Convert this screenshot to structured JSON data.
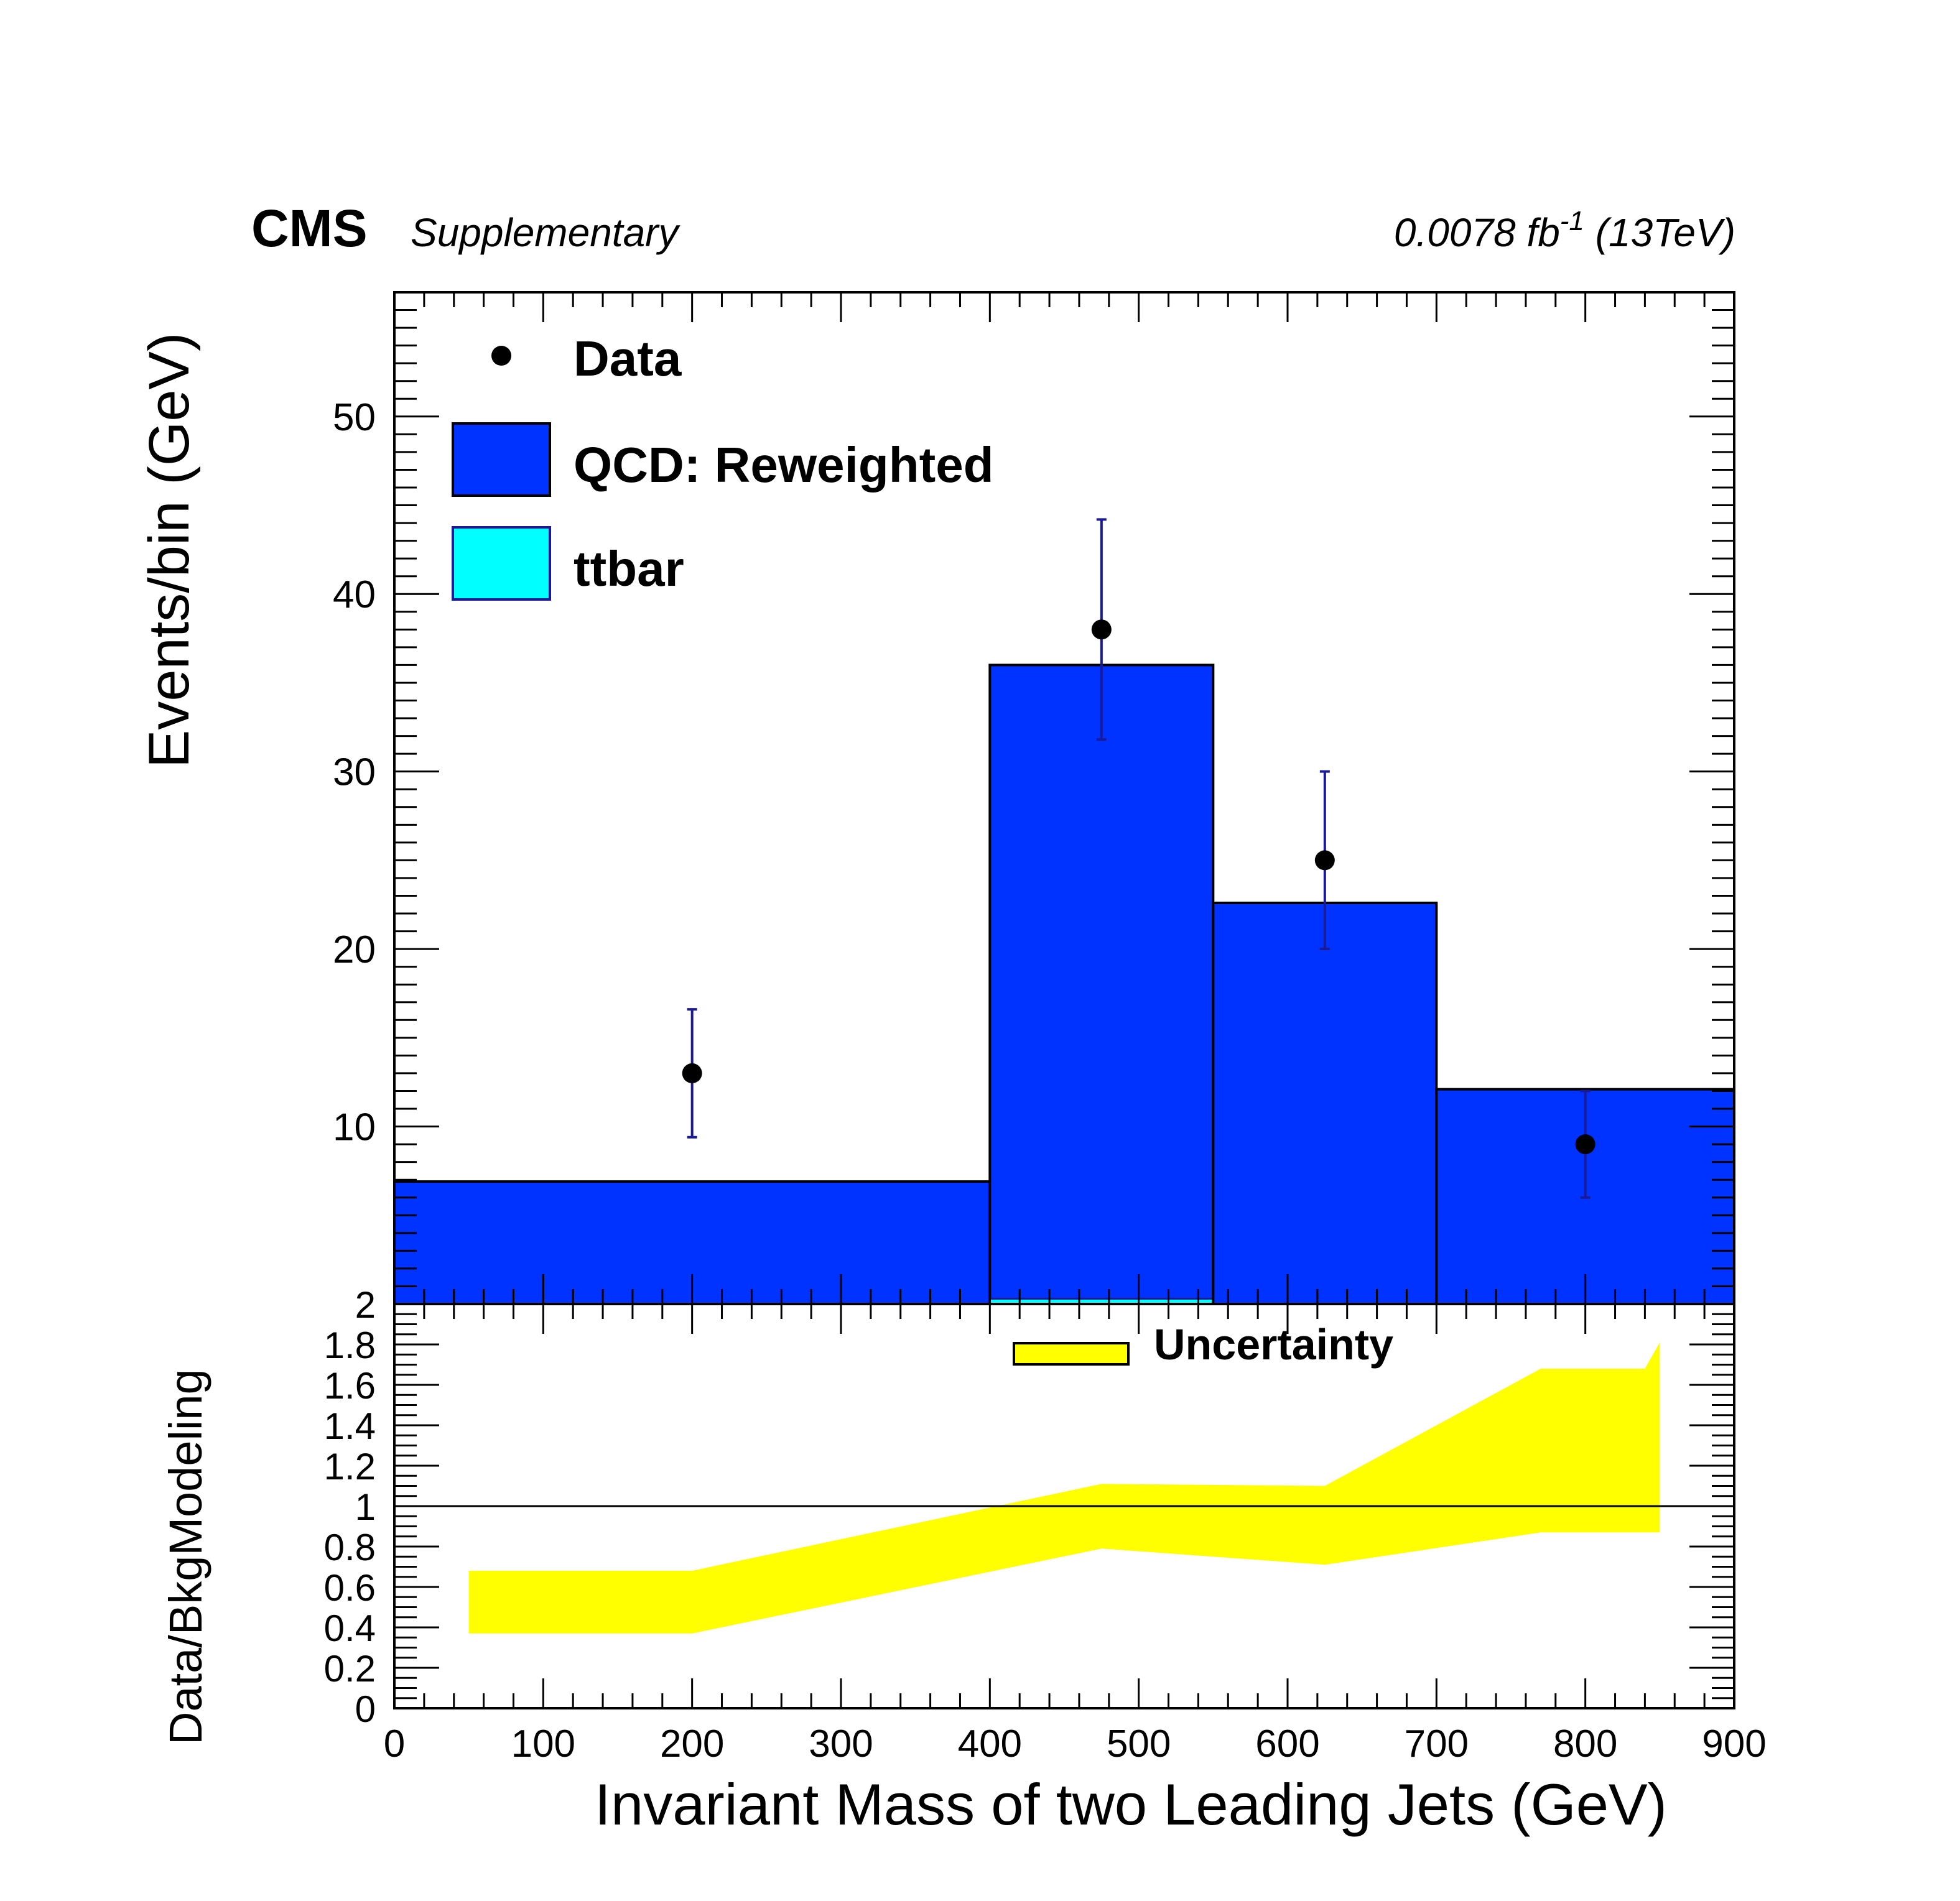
{
  "header": {
    "experiment": "CMS",
    "tag": "Supplementary",
    "lumi_prefix": "0.0078 fb",
    "lumi_exponent": "-1",
    "lumi_suffix": " (13TeV)"
  },
  "colors": {
    "qcd_fill": "#0033ff",
    "ttbar_fill": "#00ffff",
    "uncertainty_fill": "#ffff00",
    "error_bar": "#1a1a99",
    "marker": "#000000",
    "axis": "#000000"
  },
  "chart_data": [
    {
      "panel": "main",
      "type": "bar",
      "xlim": [
        0,
        900
      ],
      "ylim": [
        0,
        57
      ],
      "ylabel": "Events/bin (GeV)",
      "yticks": [
        10,
        20,
        30,
        40,
        50
      ],
      "bin_edges": [
        0,
        400,
        550,
        700,
        900
      ],
      "series": [
        {
          "name": "QCD: Reweighted",
          "kind": "stacked-histogram",
          "values": [
            6.9,
            36,
            22.6,
            12.1
          ]
        },
        {
          "name": "ttbar",
          "kind": "stacked-histogram",
          "values": [
            0,
            0.3,
            0,
            0
          ]
        },
        {
          "name": "Data",
          "kind": "points-with-errors",
          "x": [
            200,
            475,
            625,
            800
          ],
          "y": [
            13,
            38,
            25,
            9
          ],
          "err_low": [
            3.6,
            6.2,
            5.0,
            3.0
          ],
          "err_high": [
            3.6,
            6.2,
            5.0,
            3.0
          ]
        }
      ],
      "legend": {
        "placement": "top-left",
        "entries": [
          "Data",
          "QCD: Reweighted",
          "ttbar"
        ]
      }
    },
    {
      "panel": "ratio",
      "type": "area",
      "xlim": [
        0,
        900
      ],
      "ylim": [
        0,
        2
      ],
      "xlabel": "Invariant Mass of two Leading Jets (GeV)",
      "ylabel": "Data/BkgModeling",
      "yticks": [
        "0",
        "0.2",
        "0.4",
        "0.6",
        "0.8",
        "1",
        "1.2",
        "1.4",
        "1.6",
        "1.8",
        "2"
      ],
      "xticks": [
        "0",
        "100",
        "200",
        "300",
        "400",
        "500",
        "600",
        "700",
        "800",
        "900"
      ],
      "reference_line": 1,
      "series": [
        {
          "name": "Uncertainty",
          "kind": "band",
          "x": [
            50,
            200,
            475,
            625,
            770,
            840,
            850
          ],
          "upper": [
            0.68,
            0.68,
            1.11,
            1.1,
            1.68,
            1.68,
            1.81
          ],
          "lower": [
            0.37,
            0.37,
            0.79,
            0.71,
            0.87,
            0.87,
            0.87
          ]
        }
      ],
      "legend": {
        "placement": "top-center",
        "entries": [
          "Uncertainty"
        ]
      }
    }
  ]
}
